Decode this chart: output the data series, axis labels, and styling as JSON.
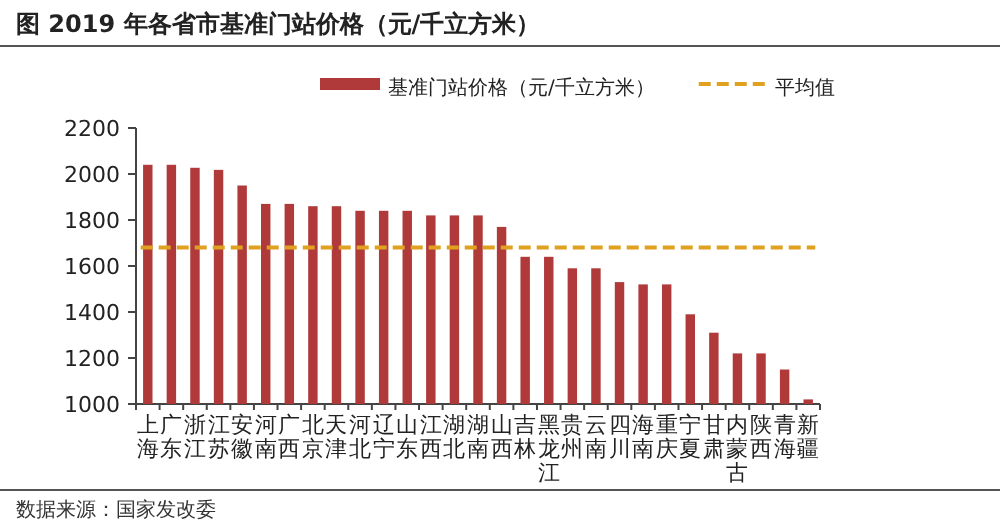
{
  "chart_data": {
    "type": "bar",
    "title": "图 2019 年各省市基准门站价格（元/千立方米）",
    "categories": [
      "上海",
      "广东",
      "浙江",
      "江苏",
      "安徽",
      "河南",
      "广西",
      "北京",
      "天津",
      "河北",
      "辽宁",
      "山东",
      "江西",
      "湖北",
      "湖南",
      "山西",
      "吉林",
      "黑龙江",
      "贵州",
      "云南",
      "四川",
      "海南",
      "重庆",
      "宁夏",
      "甘肃",
      "内蒙古",
      "陕西",
      "青海",
      "新疆"
    ],
    "series": [
      {
        "name": "基准门站价格（元/千立方米）",
        "color": "#b03a3a",
        "values": [
          2040,
          2040,
          2027,
          2018,
          1950,
          1870,
          1870,
          1860,
          1860,
          1840,
          1840,
          1840,
          1820,
          1820,
          1820,
          1770,
          1640,
          1640,
          1590,
          1590,
          1530,
          1520,
          1520,
          1390,
          1310,
          1220,
          1220,
          1150,
          1020
        ]
      }
    ],
    "ref_lines": [
      {
        "axis": "y",
        "value": 1680,
        "label": "平均值",
        "color": "#e0a020",
        "line_style": "dashed"
      }
    ],
    "ylim": [
      1000,
      2200
    ],
    "yticks": [
      1000,
      1200,
      1400,
      1600,
      1800,
      2000,
      2200
    ],
    "legend": "top",
    "grid": false,
    "annotations": [
      "数据来源：国家发改委"
    ]
  }
}
